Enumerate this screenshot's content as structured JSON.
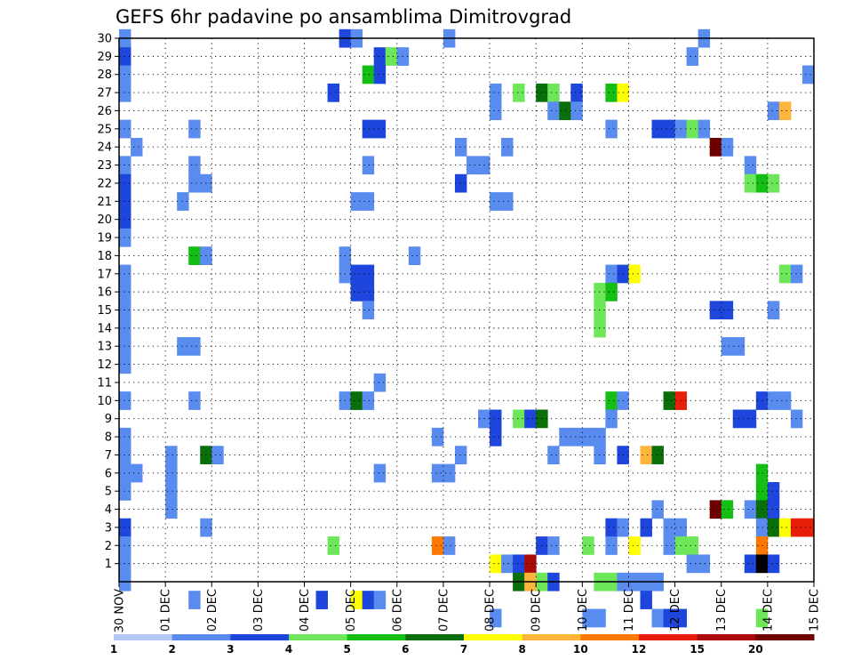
{
  "chart_data": {
    "type": "heatmap",
    "title": "GEFS 6hr padavine po ansamblima Dimitrovgrad",
    "x_tick_labels": [
      "30 NOV",
      "01 DEC",
      "02 DEC",
      "03 DEC",
      "04 DEC",
      "05 DEC",
      "06 DEC",
      "07 DEC",
      "08 DEC",
      "09 DEC",
      "10 DEC",
      "11 DEC",
      "12 DEC",
      "13 DEC",
      "14 DEC",
      "15 DEC"
    ],
    "y_tick_labels": [
      "1",
      "2",
      "3",
      "4",
      "5",
      "6",
      "7",
      "8",
      "9",
      "10",
      "11",
      "12",
      "13",
      "14",
      "15",
      "16",
      "17",
      "18",
      "19",
      "20",
      "21",
      "22",
      "23",
      "24",
      "25",
      "26",
      "27",
      "28",
      "29",
      "30"
    ],
    "y_range": [
      0,
      30
    ],
    "time_steps": 60,
    "steps_per_day": 4,
    "grid": true,
    "legend": {
      "position": "bottom",
      "labels": [
        "1",
        "2",
        "3",
        "4",
        "5",
        "6",
        "7",
        "8",
        "10",
        "12",
        "15",
        "20"
      ],
      "colors": [
        "#b4c8f5",
        "#5a8cf0",
        "#1e46dc",
        "#6ee65a",
        "#14be14",
        "#0a6e0a",
        "#ffff00",
        "#ffb43c",
        "#ff7800",
        "#e61e0a",
        "#aa0a0a",
        "#6e0000"
      ]
    },
    "cells": [
      [
        30,
        0,
        1
      ],
      [
        30,
        19,
        2
      ],
      [
        30,
        20,
        1
      ],
      [
        30,
        28,
        1
      ],
      [
        30,
        50,
        1
      ],
      [
        29,
        0,
        2
      ],
      [
        29,
        22,
        2
      ],
      [
        29,
        23,
        3
      ],
      [
        29,
        24,
        1
      ],
      [
        29,
        49,
        1
      ],
      [
        28,
        0,
        1
      ],
      [
        28,
        21,
        4
      ],
      [
        28,
        22,
        2
      ],
      [
        28,
        59,
        1
      ],
      [
        27,
        0,
        1
      ],
      [
        27,
        18,
        2
      ],
      [
        27,
        32,
        1
      ],
      [
        27,
        34,
        3
      ],
      [
        27,
        36,
        5
      ],
      [
        27,
        37,
        3
      ],
      [
        27,
        39,
        2
      ],
      [
        27,
        42,
        4
      ],
      [
        27,
        43,
        6
      ],
      [
        26,
        32,
        1
      ],
      [
        26,
        37,
        1
      ],
      [
        26,
        38,
        5
      ],
      [
        26,
        39,
        1
      ],
      [
        26,
        56,
        1
      ],
      [
        26,
        57,
        7
      ],
      [
        25,
        0,
        1
      ],
      [
        25,
        6,
        1
      ],
      [
        25,
        21,
        2
      ],
      [
        25,
        22,
        2
      ],
      [
        25,
        42,
        1
      ],
      [
        25,
        46,
        2
      ],
      [
        25,
        47,
        2
      ],
      [
        25,
        48,
        1
      ],
      [
        25,
        49,
        3
      ],
      [
        25,
        50,
        1
      ],
      [
        24,
        1,
        1
      ],
      [
        24,
        29,
        1
      ],
      [
        24,
        33,
        1
      ],
      [
        24,
        51,
        11
      ],
      [
        24,
        52,
        1
      ],
      [
        23,
        0,
        1
      ],
      [
        23,
        6,
        1
      ],
      [
        23,
        21,
        1
      ],
      [
        23,
        30,
        1
      ],
      [
        23,
        31,
        1
      ],
      [
        23,
        54,
        1
      ],
      [
        22,
        0,
        2
      ],
      [
        22,
        6,
        1
      ],
      [
        22,
        7,
        1
      ],
      [
        22,
        29,
        2
      ],
      [
        22,
        54,
        3
      ],
      [
        22,
        55,
        4
      ],
      [
        22,
        56,
        3
      ],
      [
        21,
        0,
        2
      ],
      [
        21,
        5,
        1
      ],
      [
        21,
        20,
        1
      ],
      [
        21,
        21,
        1
      ],
      [
        21,
        32,
        1
      ],
      [
        21,
        33,
        1
      ],
      [
        20,
        0,
        2
      ],
      [
        19,
        0,
        1
      ],
      [
        18,
        6,
        4
      ],
      [
        18,
        7,
        1
      ],
      [
        18,
        19,
        1
      ],
      [
        18,
        25,
        1
      ],
      [
        17,
        0,
        1
      ],
      [
        17,
        19,
        1
      ],
      [
        17,
        20,
        2
      ],
      [
        17,
        21,
        2
      ],
      [
        17,
        42,
        1
      ],
      [
        17,
        43,
        2
      ],
      [
        17,
        44,
        6
      ],
      [
        17,
        57,
        3
      ],
      [
        17,
        58,
        1
      ],
      [
        16,
        0,
        1
      ],
      [
        16,
        20,
        2
      ],
      [
        16,
        21,
        2
      ],
      [
        16,
        41,
        3
      ],
      [
        16,
        42,
        4
      ],
      [
        15,
        0,
        1
      ],
      [
        15,
        21,
        1
      ],
      [
        15,
        41,
        3
      ],
      [
        15,
        51,
        2
      ],
      [
        15,
        52,
        2
      ],
      [
        15,
        56,
        1
      ],
      [
        14,
        0,
        1
      ],
      [
        14,
        41,
        3
      ],
      [
        13,
        0,
        1
      ],
      [
        13,
        5,
        1
      ],
      [
        13,
        6,
        1
      ],
      [
        13,
        52,
        1
      ],
      [
        13,
        53,
        1
      ],
      [
        12,
        0,
        1
      ],
      [
        11,
        22,
        1
      ],
      [
        10,
        0,
        1
      ],
      [
        10,
        6,
        1
      ],
      [
        10,
        19,
        1
      ],
      [
        10,
        20,
        5
      ],
      [
        10,
        21,
        1
      ],
      [
        10,
        42,
        4
      ],
      [
        10,
        43,
        1
      ],
      [
        10,
        47,
        5
      ],
      [
        10,
        48,
        9
      ],
      [
        10,
        55,
        2
      ],
      [
        10,
        56,
        1
      ],
      [
        10,
        57,
        1
      ],
      [
        9,
        31,
        1
      ],
      [
        9,
        32,
        2
      ],
      [
        9,
        34,
        3
      ],
      [
        9,
        35,
        2
      ],
      [
        9,
        36,
        5
      ],
      [
        9,
        42,
        1
      ],
      [
        9,
        53,
        2
      ],
      [
        9,
        54,
        2
      ],
      [
        9,
        58,
        1
      ],
      [
        8,
        0,
        1
      ],
      [
        8,
        27,
        1
      ],
      [
        8,
        32,
        2
      ],
      [
        8,
        38,
        1
      ],
      [
        8,
        39,
        1
      ],
      [
        8,
        40,
        1
      ],
      [
        8,
        41,
        1
      ],
      [
        7,
        0,
        1
      ],
      [
        7,
        4,
        1
      ],
      [
        7,
        7,
        5
      ],
      [
        7,
        8,
        1
      ],
      [
        7,
        29,
        1
      ],
      [
        7,
        37,
        1
      ],
      [
        7,
        41,
        1
      ],
      [
        7,
        43,
        2
      ],
      [
        7,
        45,
        7
      ],
      [
        7,
        46,
        5
      ],
      [
        6,
        0,
        1
      ],
      [
        6,
        1,
        1
      ],
      [
        6,
        4,
        1
      ],
      [
        6,
        22,
        1
      ],
      [
        6,
        27,
        1
      ],
      [
        6,
        28,
        1
      ],
      [
        6,
        55,
        4
      ],
      [
        5,
        0,
        1
      ],
      [
        5,
        4,
        1
      ],
      [
        5,
        55,
        4
      ],
      [
        5,
        56,
        2
      ],
      [
        4,
        4,
        1
      ],
      [
        4,
        46,
        1
      ],
      [
        4,
        51,
        11
      ],
      [
        4,
        52,
        4
      ],
      [
        4,
        54,
        1
      ],
      [
        4,
        55,
        5
      ],
      [
        4,
        56,
        2
      ],
      [
        3,
        0,
        2
      ],
      [
        3,
        7,
        1
      ],
      [
        3,
        42,
        2
      ],
      [
        3,
        43,
        1
      ],
      [
        3,
        45,
        2
      ],
      [
        3,
        47,
        1
      ],
      [
        3,
        48,
        1
      ],
      [
        3,
        55,
        1
      ],
      [
        3,
        56,
        5
      ],
      [
        3,
        57,
        6
      ],
      [
        3,
        58,
        9
      ],
      [
        3,
        59,
        9
      ],
      [
        2,
        0,
        1
      ],
      [
        2,
        18,
        3
      ],
      [
        2,
        27,
        8
      ],
      [
        2,
        28,
        1
      ],
      [
        2,
        36,
        2
      ],
      [
        2,
        37,
        1
      ],
      [
        2,
        40,
        3
      ],
      [
        2,
        42,
        1
      ],
      [
        2,
        44,
        6
      ],
      [
        2,
        47,
        1
      ],
      [
        2,
        48,
        3
      ],
      [
        2,
        49,
        3
      ],
      [
        2,
        55,
        8
      ],
      [
        1,
        0,
        1
      ],
      [
        1,
        32,
        6
      ],
      [
        1,
        33,
        1
      ],
      [
        1,
        34,
        2
      ],
      [
        1,
        35,
        10
      ],
      [
        1,
        49,
        1
      ],
      [
        1,
        50,
        1
      ],
      [
        1,
        54,
        2
      ],
      [
        1,
        55,
        12
      ],
      [
        1,
        56,
        2
      ],
      [
        0,
        0,
        1
      ],
      [
        0,
        34,
        5
      ],
      [
        0,
        35,
        7
      ],
      [
        0,
        36,
        3
      ],
      [
        0,
        37,
        2
      ],
      [
        0,
        41,
        3
      ],
      [
        0,
        42,
        3
      ],
      [
        0,
        43,
        1
      ],
      [
        0,
        44,
        1
      ],
      [
        0,
        45,
        1
      ],
      [
        0,
        46,
        1
      ],
      [
        -1,
        6,
        1
      ],
      [
        -1,
        17,
        2
      ],
      [
        -1,
        20,
        6
      ],
      [
        -1,
        21,
        2
      ],
      [
        -1,
        22,
        1
      ],
      [
        -1,
        45,
        2
      ],
      [
        -2,
        32,
        1
      ],
      [
        -2,
        40,
        1
      ],
      [
        -2,
        41,
        1
      ],
      [
        -2,
        46,
        1
      ],
      [
        -2,
        47,
        2
      ],
      [
        -2,
        48,
        2
      ],
      [
        -2,
        55,
        3
      ]
    ]
  }
}
